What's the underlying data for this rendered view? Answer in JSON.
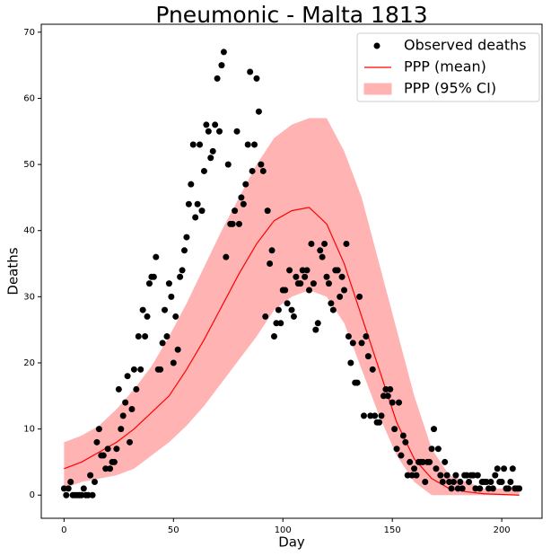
{
  "chart_data": {
    "type": "scatter",
    "title": "Pneumonic - Malta 1813",
    "x_label": "Day",
    "y_label": "Deaths",
    "xlim": [
      -10.4,
      218.4
    ],
    "ylim": [
      -3.5,
      71.2
    ],
    "xticks": [
      0,
      50,
      100,
      150,
      200
    ],
    "yticks": [
      0,
      10,
      20,
      30,
      40,
      50,
      60,
      70
    ],
    "legend": "upper right",
    "series": [
      {
        "name": "Observed deaths",
        "type": "scatter",
        "color": "#000000",
        "x": [
          0,
          1,
          2,
          3,
          4,
          5,
          6,
          7,
          8,
          9,
          10,
          11,
          12,
          13,
          14,
          15,
          16,
          17,
          18,
          19,
          20,
          21,
          22,
          23,
          24,
          25,
          26,
          27,
          28,
          29,
          30,
          31,
          32,
          33,
          34,
          35,
          36,
          37,
          38,
          39,
          40,
          41,
          42,
          43,
          44,
          45,
          46,
          47,
          48,
          49,
          50,
          51,
          52,
          53,
          54,
          55,
          56,
          57,
          58,
          59,
          60,
          61,
          62,
          63,
          64,
          65,
          66,
          67,
          68,
          69,
          70,
          71,
          72,
          73,
          74,
          75,
          76,
          77,
          78,
          79,
          80,
          81,
          82,
          83,
          84,
          85,
          86,
          87,
          88,
          89,
          90,
          91,
          92,
          93,
          94,
          95,
          96,
          97,
          98,
          99,
          100,
          101,
          102,
          103,
          104,
          105,
          106,
          107,
          108,
          109,
          110,
          111,
          112,
          113,
          114,
          115,
          116,
          117,
          118,
          119,
          120,
          121,
          122,
          123,
          124,
          125,
          126,
          127,
          128,
          129,
          130,
          131,
          132,
          133,
          134,
          135,
          136,
          137,
          138,
          139,
          140,
          141,
          142,
          143,
          144,
          145,
          146,
          147,
          148,
          149,
          150,
          151,
          152,
          153,
          154,
          155,
          156,
          157,
          158,
          159,
          160,
          161,
          162,
          163,
          164,
          165,
          166,
          167,
          168,
          169,
          170,
          171,
          172,
          173,
          174,
          175,
          176,
          177,
          178,
          179,
          180,
          181,
          182,
          183,
          184,
          185,
          186,
          187,
          188,
          189,
          190,
          191,
          192,
          193,
          194,
          195,
          196,
          197,
          198,
          199,
          200,
          201,
          202,
          203,
          204,
          205,
          206,
          207,
          208
        ],
        "values": [
          1,
          0,
          1,
          2,
          0,
          0,
          0,
          0,
          0,
          1,
          0,
          0,
          3,
          0,
          2,
          8,
          10,
          6,
          6,
          4,
          7,
          4,
          5,
          5,
          7,
          16,
          10,
          12,
          14,
          18,
          8,
          13,
          19,
          16,
          24,
          19,
          28,
          24,
          27,
          32,
          33,
          33,
          36,
          19,
          19,
          23,
          28,
          24,
          32,
          30,
          20,
          27,
          22,
          33,
          34,
          37,
          39,
          44,
          47,
          53,
          42,
          44,
          53,
          43,
          49,
          56,
          55,
          51,
          52,
          56,
          63,
          55,
          65,
          67,
          36,
          50,
          41,
          41,
          43,
          55,
          41,
          45,
          44,
          47,
          53,
          64,
          49,
          53,
          63,
          58,
          50,
          49,
          27,
          43,
          35,
          37,
          24,
          26,
          28,
          26,
          31,
          31,
          29,
          34,
          28,
          27,
          33,
          32,
          32,
          34,
          33,
          34,
          31,
          38,
          32,
          25,
          26,
          37,
          36,
          38,
          33,
          32,
          29,
          28,
          34,
          34,
          30,
          33,
          31,
          38,
          24,
          20,
          23,
          17,
          17,
          30,
          23,
          12,
          24,
          21,
          12,
          19,
          12,
          11,
          11,
          12,
          15,
          16,
          15,
          16,
          14,
          10,
          7,
          14,
          6,
          9,
          8,
          3,
          5,
          3,
          4,
          3,
          5,
          5,
          5,
          2,
          5,
          5,
          7,
          10,
          4,
          7,
          3,
          2,
          5,
          3,
          2,
          1,
          2,
          3,
          1,
          2,
          1,
          3,
          3,
          2,
          3,
          3,
          1,
          3,
          1,
          2,
          2,
          2,
          1,
          2,
          1,
          3,
          4,
          2,
          2,
          4,
          1,
          1,
          2,
          4,
          1,
          1,
          1
        ]
      },
      {
        "name": "PPP (mean)",
        "type": "line",
        "color": "#ff0000",
        "x": [
          0,
          8,
          16,
          24,
          32,
          40,
          48,
          56,
          64,
          72,
          80,
          88,
          96,
          104,
          112,
          120,
          128,
          136,
          144,
          152,
          160,
          168,
          176,
          184,
          192,
          200,
          208
        ],
        "values": [
          4,
          5,
          6.5,
          8,
          10,
          12.5,
          15,
          19,
          23.5,
          28.5,
          33.5,
          38,
          41.5,
          43,
          43.5,
          41,
          35,
          27,
          19,
          11,
          5.5,
          2.5,
          1,
          0.5,
          0.2,
          0.1,
          0
        ]
      },
      {
        "name": "PPP (95% CI)",
        "type": "band",
        "color": "#ffb3b3",
        "x": [
          0,
          8,
          16,
          24,
          32,
          40,
          48,
          56,
          64,
          72,
          80,
          88,
          96,
          104,
          112,
          120,
          128,
          136,
          144,
          152,
          160,
          168,
          176,
          184,
          192,
          200,
          208
        ],
        "upper": [
          8,
          9,
          10.5,
          13,
          16,
          19.5,
          24,
          29,
          34.5,
          40,
          45,
          50,
          54,
          56,
          57,
          57,
          52,
          45,
          35,
          25,
          15,
          7,
          3,
          2,
          1,
          1,
          1
        ],
        "lower": [
          1,
          2,
          2.5,
          3,
          4,
          6,
          8,
          10.5,
          13.5,
          17,
          20.5,
          24,
          28,
          30,
          31,
          30,
          26,
          19,
          12,
          6,
          2,
          0,
          0,
          0,
          0,
          0,
          0
        ]
      }
    ]
  }
}
